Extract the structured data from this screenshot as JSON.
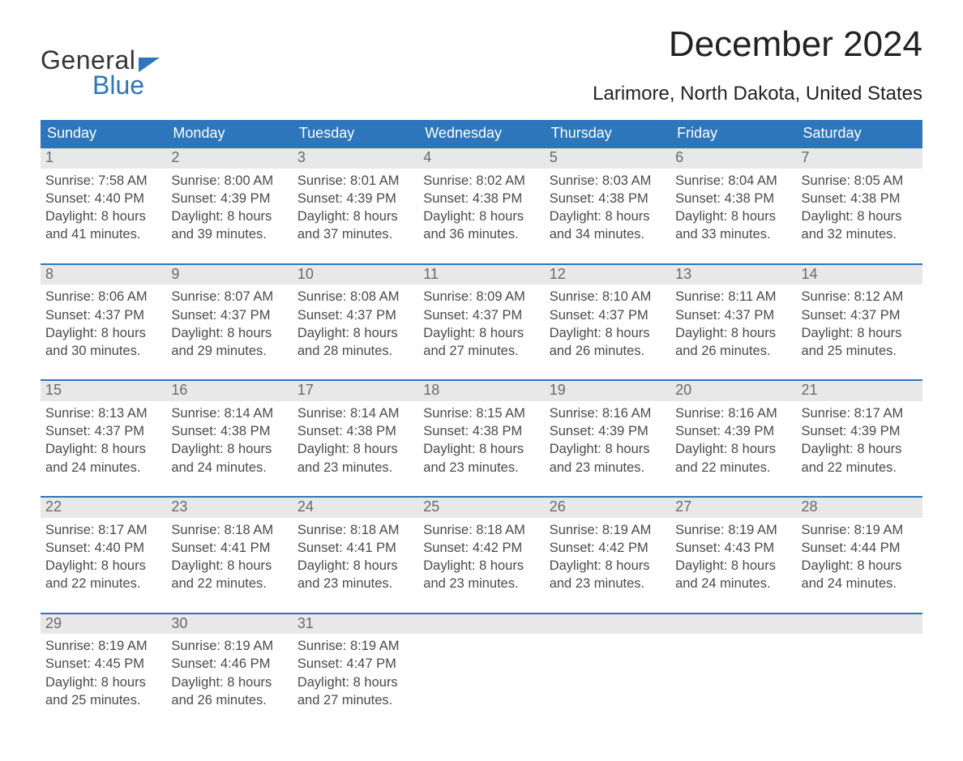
{
  "brand": {
    "word1": "General",
    "word2": "Blue"
  },
  "title": "December 2024",
  "location": "Larimore, North Dakota, United States",
  "colors": {
    "accent": "#2d76bb",
    "header_gray": "#e8e8e8",
    "text_gray": "#4a4a4a",
    "background": "#ffffff"
  },
  "calendar": {
    "type": "table",
    "columns": [
      "Sunday",
      "Monday",
      "Tuesday",
      "Wednesday",
      "Thursday",
      "Friday",
      "Saturday"
    ],
    "label_sunrise": "Sunrise:",
    "label_sunset": "Sunset:",
    "label_daylight": "Daylight:",
    "weeks": [
      [
        {
          "n": "1",
          "sunrise": "7:58 AM",
          "sunset": "4:40 PM",
          "day_h": 8,
          "day_m": 41
        },
        {
          "n": "2",
          "sunrise": "8:00 AM",
          "sunset": "4:39 PM",
          "day_h": 8,
          "day_m": 39
        },
        {
          "n": "3",
          "sunrise": "8:01 AM",
          "sunset": "4:39 PM",
          "day_h": 8,
          "day_m": 37
        },
        {
          "n": "4",
          "sunrise": "8:02 AM",
          "sunset": "4:38 PM",
          "day_h": 8,
          "day_m": 36
        },
        {
          "n": "5",
          "sunrise": "8:03 AM",
          "sunset": "4:38 PM",
          "day_h": 8,
          "day_m": 34
        },
        {
          "n": "6",
          "sunrise": "8:04 AM",
          "sunset": "4:38 PM",
          "day_h": 8,
          "day_m": 33
        },
        {
          "n": "7",
          "sunrise": "8:05 AM",
          "sunset": "4:38 PM",
          "day_h": 8,
          "day_m": 32
        }
      ],
      [
        {
          "n": "8",
          "sunrise": "8:06 AM",
          "sunset": "4:37 PM",
          "day_h": 8,
          "day_m": 30
        },
        {
          "n": "9",
          "sunrise": "8:07 AM",
          "sunset": "4:37 PM",
          "day_h": 8,
          "day_m": 29
        },
        {
          "n": "10",
          "sunrise": "8:08 AM",
          "sunset": "4:37 PM",
          "day_h": 8,
          "day_m": 28
        },
        {
          "n": "11",
          "sunrise": "8:09 AM",
          "sunset": "4:37 PM",
          "day_h": 8,
          "day_m": 27
        },
        {
          "n": "12",
          "sunrise": "8:10 AM",
          "sunset": "4:37 PM",
          "day_h": 8,
          "day_m": 26
        },
        {
          "n": "13",
          "sunrise": "8:11 AM",
          "sunset": "4:37 PM",
          "day_h": 8,
          "day_m": 26
        },
        {
          "n": "14",
          "sunrise": "8:12 AM",
          "sunset": "4:37 PM",
          "day_h": 8,
          "day_m": 25
        }
      ],
      [
        {
          "n": "15",
          "sunrise": "8:13 AM",
          "sunset": "4:37 PM",
          "day_h": 8,
          "day_m": 24
        },
        {
          "n": "16",
          "sunrise": "8:14 AM",
          "sunset": "4:38 PM",
          "day_h": 8,
          "day_m": 24
        },
        {
          "n": "17",
          "sunrise": "8:14 AM",
          "sunset": "4:38 PM",
          "day_h": 8,
          "day_m": 23
        },
        {
          "n": "18",
          "sunrise": "8:15 AM",
          "sunset": "4:38 PM",
          "day_h": 8,
          "day_m": 23
        },
        {
          "n": "19",
          "sunrise": "8:16 AM",
          "sunset": "4:39 PM",
          "day_h": 8,
          "day_m": 23
        },
        {
          "n": "20",
          "sunrise": "8:16 AM",
          "sunset": "4:39 PM",
          "day_h": 8,
          "day_m": 22
        },
        {
          "n": "21",
          "sunrise": "8:17 AM",
          "sunset": "4:39 PM",
          "day_h": 8,
          "day_m": 22
        }
      ],
      [
        {
          "n": "22",
          "sunrise": "8:17 AM",
          "sunset": "4:40 PM",
          "day_h": 8,
          "day_m": 22
        },
        {
          "n": "23",
          "sunrise": "8:18 AM",
          "sunset": "4:41 PM",
          "day_h": 8,
          "day_m": 22
        },
        {
          "n": "24",
          "sunrise": "8:18 AM",
          "sunset": "4:41 PM",
          "day_h": 8,
          "day_m": 23
        },
        {
          "n": "25",
          "sunrise": "8:18 AM",
          "sunset": "4:42 PM",
          "day_h": 8,
          "day_m": 23
        },
        {
          "n": "26",
          "sunrise": "8:19 AM",
          "sunset": "4:42 PM",
          "day_h": 8,
          "day_m": 23
        },
        {
          "n": "27",
          "sunrise": "8:19 AM",
          "sunset": "4:43 PM",
          "day_h": 8,
          "day_m": 24
        },
        {
          "n": "28",
          "sunrise": "8:19 AM",
          "sunset": "4:44 PM",
          "day_h": 8,
          "day_m": 24
        }
      ],
      [
        {
          "n": "29",
          "sunrise": "8:19 AM",
          "sunset": "4:45 PM",
          "day_h": 8,
          "day_m": 25
        },
        {
          "n": "30",
          "sunrise": "8:19 AM",
          "sunset": "4:46 PM",
          "day_h": 8,
          "day_m": 26
        },
        {
          "n": "31",
          "sunrise": "8:19 AM",
          "sunset": "4:47 PM",
          "day_h": 8,
          "day_m": 27
        },
        null,
        null,
        null,
        null
      ]
    ]
  }
}
